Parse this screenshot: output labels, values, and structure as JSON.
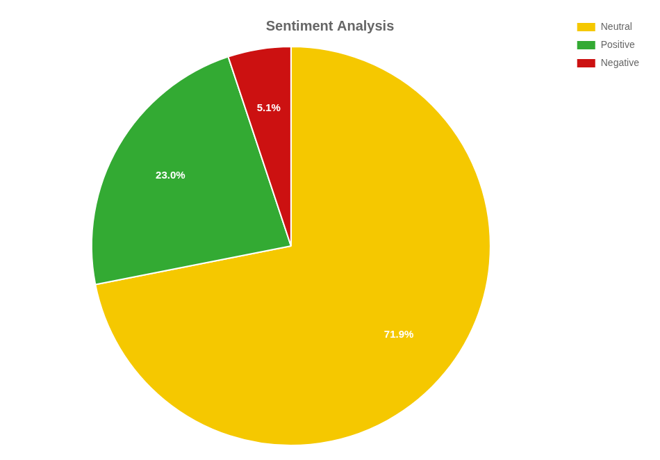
{
  "chart_data": {
    "type": "pie",
    "title": "Sentiment Analysis",
    "categories": [
      "Neutral",
      "Positive",
      "Negative"
    ],
    "values": [
      71.9,
      23.0,
      5.1
    ],
    "value_labels": [
      "71.9%",
      "23.0%",
      "5.1%"
    ],
    "colors": [
      "#f5c800",
      "#33aa33",
      "#cc1111"
    ],
    "data_labels": true,
    "legend": "upper right"
  }
}
